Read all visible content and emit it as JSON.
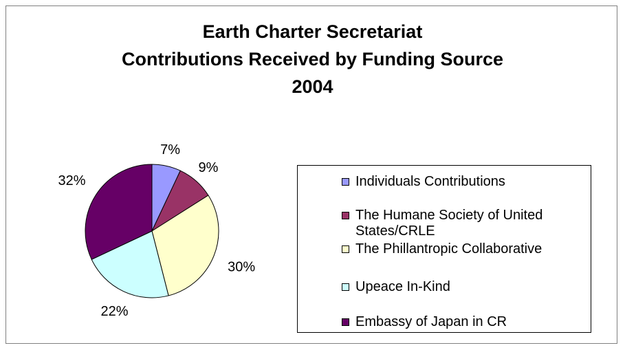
{
  "chart_data": {
    "type": "pie",
    "title": [
      "Earth Charter Secretariat",
      "Contributions Received by Funding Source",
      "2004"
    ],
    "categories": [
      "Individuals Contributions",
      "The Humane Society of United States/CRLE",
      "The Phillantropic Collaborative",
      "Upeace In-Kind",
      "Embassy of Japan in CR"
    ],
    "values": [
      7,
      9,
      30,
      22,
      32
    ],
    "data_labels": [
      "7%",
      "9%",
      "30%",
      "22%",
      "32%"
    ],
    "colors": [
      "#9999ff",
      "#993366",
      "#ffffcc",
      "#ccffff",
      "#660066"
    ],
    "legend": "right"
  }
}
